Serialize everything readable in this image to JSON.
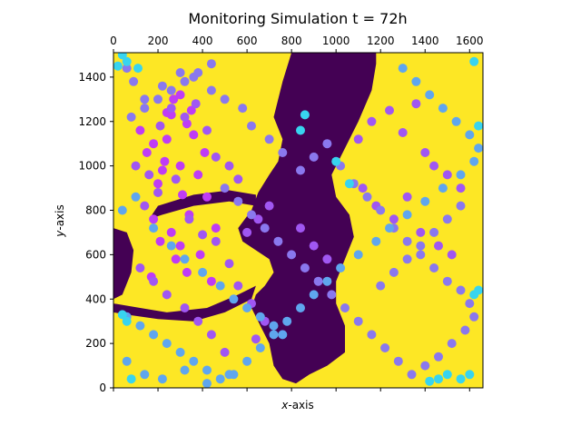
{
  "chart_data": {
    "type": "scatter",
    "title": "Monitoring Simulation t = 72h",
    "xlabel_var": "x",
    "xlabel_suffix": "-axis",
    "ylabel_var": "y",
    "ylabel_suffix": "-axis",
    "xlim": [
      0,
      1660
    ],
    "ylim": [
      0,
      1510
    ],
    "x_ticks_top": [
      0,
      200,
      400,
      600,
      800,
      1000,
      1200,
      1400,
      1600
    ],
    "y_ticks": [
      0,
      200,
      400,
      600,
      800,
      1000,
      1200,
      1400
    ],
    "x_tick_labels": [
      "0",
      "200",
      "400",
      "600",
      "800",
      "1000",
      "1200",
      "1400",
      "1600"
    ],
    "y_tick_labels": [
      "0",
      "200",
      "400",
      "600",
      "800",
      "1000",
      "1200",
      "1400"
    ],
    "background_colors": {
      "field": "#fde725",
      "void": "#440154"
    },
    "marker_colors": [
      "#bf3cf5",
      "#a057f2",
      "#8a78ee",
      "#5fa6ee",
      "#38d4ef"
    ],
    "void_regions": [
      [
        [
          800,
          1510
        ],
        [
          760,
          1380
        ],
        [
          720,
          1220
        ],
        [
          760,
          1120
        ],
        [
          740,
          1020
        ],
        [
          700,
          960
        ],
        [
          650,
          880
        ],
        [
          620,
          800
        ],
        [
          560,
          720
        ],
        [
          580,
          660
        ],
        [
          640,
          620
        ],
        [
          700,
          580
        ],
        [
          720,
          520
        ],
        [
          680,
          460
        ],
        [
          640,
          420
        ],
        [
          620,
          360
        ],
        [
          660,
          280
        ],
        [
          700,
          200
        ],
        [
          720,
          100
        ],
        [
          760,
          40
        ],
        [
          820,
          20
        ],
        [
          880,
          60
        ],
        [
          960,
          100
        ],
        [
          1040,
          160
        ],
        [
          1040,
          280
        ],
        [
          1000,
          380
        ],
        [
          1000,
          480
        ],
        [
          1040,
          580
        ],
        [
          1080,
          680
        ],
        [
          1060,
          780
        ],
        [
          1000,
          860
        ],
        [
          980,
          960
        ],
        [
          1040,
          1080
        ],
        [
          1100,
          1200
        ],
        [
          1160,
          1340
        ],
        [
          1180,
          1460
        ],
        [
          1180,
          1510
        ]
      ],
      [
        [
          0,
          720
        ],
        [
          60,
          700
        ],
        [
          90,
          620
        ],
        [
          80,
          520
        ],
        [
          40,
          420
        ],
        [
          0,
          400
        ]
      ],
      [
        [
          200,
          820
        ],
        [
          360,
          870
        ],
        [
          520,
          890
        ],
        [
          640,
          870
        ],
        [
          640,
          820
        ],
        [
          520,
          840
        ],
        [
          360,
          820
        ],
        [
          220,
          780
        ],
        [
          160,
          760
        ]
      ],
      [
        [
          0,
          380
        ],
        [
          120,
          360
        ],
        [
          240,
          340
        ],
        [
          420,
          360
        ],
        [
          560,
          420
        ],
        [
          640,
          460
        ],
        [
          620,
          400
        ],
        [
          500,
          340
        ],
        [
          360,
          300
        ],
        [
          200,
          310
        ],
        [
          60,
          330
        ],
        [
          0,
          340
        ]
      ]
    ],
    "series": [
      {
        "x": [
          120,
          180,
          260,
          330,
          410,
          230,
          300,
          200,
          380,
          150,
          270,
          350,
          240,
          310,
          420,
          180,
          340,
          260,
          460,
          300,
          210,
          390,
          280,
          330,
          170,
          440,
          240,
          360,
          300,
          220
        ],
        "y": [
          1160,
          1100,
          1230,
          1190,
          1060,
          1020,
          1000,
          920,
          960,
          1060,
          1300,
          1250,
          1120,
          870,
          860,
          760,
          780,
          700,
          720,
          640,
          660,
          600,
          580,
          520,
          500,
          480,
          1240,
          1140,
          1320,
          980
        ]
      },
      {
        "x": [
          100,
          160,
          210,
          260,
          320,
          370,
          420,
          460,
          520,
          560,
          140,
          200,
          280,
          340,
          400,
          460,
          520,
          600,
          650,
          700,
          1100,
          1160,
          1240,
          1300,
          1360,
          1400,
          1440,
          1500,
          1560,
          1120,
          1180,
          1260,
          1320,
          1380,
          1460,
          1520,
          560,
          620,
          680,
          640,
          500,
          440,
          380,
          320,
          240,
          180,
          120,
          840,
          900,
          960
        ],
        "y": [
          1000,
          960,
          1180,
          1260,
          1220,
          1280,
          1160,
          1040,
          1000,
          940,
          820,
          880,
          940,
          760,
          690,
          660,
          560,
          700,
          760,
          820,
          1120,
          1200,
          1250,
          1150,
          1280,
          1060,
          1000,
          960,
          900,
          900,
          820,
          760,
          860,
          700,
          640,
          600,
          460,
          380,
          300,
          220,
          160,
          240,
          300,
          360,
          420,
          480,
          540,
          720,
          640,
          580
        ]
      },
      {
        "x": [
          60,
          90,
          140,
          220,
          300,
          360,
          440,
          500,
          580,
          620,
          700,
          760,
          840,
          900,
          960,
          1020,
          1080,
          1140,
          1200,
          1260,
          1320,
          1380,
          1440,
          1500,
          1560,
          1600,
          1620,
          1580,
          1520,
          1460,
          1400,
          1340,
          1280,
          1220,
          1160,
          1100,
          1040,
          980,
          920,
          860,
          800,
          740,
          680,
          620,
          560,
          500,
          440,
          380,
          320,
          260,
          200,
          140,
          80,
          1560,
          1500,
          1440,
          1380,
          1320,
          1260,
          1200
        ],
        "y": [
          1440,
          1380,
          1300,
          1360,
          1420,
          1400,
          1340,
          1300,
          1260,
          1180,
          1120,
          1060,
          980,
          1040,
          1100,
          1000,
          920,
          860,
          800,
          720,
          660,
          600,
          540,
          480,
          440,
          380,
          320,
          260,
          200,
          140,
          100,
          60,
          120,
          180,
          240,
          300,
          360,
          420,
          480,
          540,
          600,
          660,
          720,
          780,
          840,
          900,
          1460,
          1420,
          1380,
          1340,
          1300,
          1260,
          1220,
          820,
          760,
          700,
          640,
          580,
          520,
          460
        ]
      },
      {
        "x": [
          40,
          100,
          180,
          260,
          320,
          400,
          480,
          540,
          600,
          660,
          720,
          760,
          1300,
          1360,
          1420,
          1480,
          1540,
          1600,
          1640,
          1620,
          1560,
          1480,
          1400,
          1320,
          1240,
          1180,
          1100,
          1020,
          960,
          900,
          840,
          780,
          720,
          660,
          600,
          540,
          480,
          420,
          360,
          300,
          240,
          180,
          120,
          60,
          60,
          140,
          220,
          320,
          420,
          520
        ],
        "y": [
          800,
          860,
          720,
          640,
          580,
          520,
          460,
          400,
          360,
          320,
          280,
          240,
          1440,
          1380,
          1320,
          1260,
          1200,
          1140,
          1080,
          1020,
          960,
          900,
          840,
          780,
          720,
          660,
          600,
          540,
          480,
          420,
          360,
          300,
          240,
          180,
          120,
          60,
          40,
          80,
          120,
          160,
          200,
          240,
          280,
          320,
          120,
          60,
          40,
          80,
          20,
          60
        ]
      },
      {
        "x": [
          20,
          60,
          40,
          110,
          840,
          860,
          1000,
          1060,
          1620,
          1640,
          1600,
          1560,
          1500,
          1460,
          1420,
          40,
          80,
          60,
          1640,
          1620
        ],
        "y": [
          1450,
          1470,
          1500,
          1440,
          1160,
          1230,
          1020,
          920,
          420,
          440,
          60,
          40,
          60,
          40,
          30,
          330,
          40,
          300,
          1180,
          1470
        ]
      }
    ]
  }
}
